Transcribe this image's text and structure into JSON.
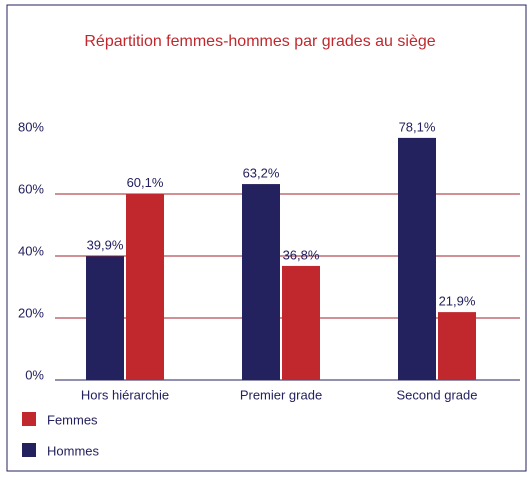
{
  "chart_data": {
    "type": "bar",
    "title": "Répartition femmes-hommes par grades au siège",
    "categories": [
      "Hors hiérarchie",
      "Premier grade",
      "Second grade"
    ],
    "series": [
      {
        "name": "Hommes",
        "color": "#23215e",
        "values": [
          39.9,
          63.2,
          78.1
        ],
        "value_labels": [
          "39,9%",
          "63,2%",
          "78,1%"
        ]
      },
      {
        "name": "Femmes",
        "color": "#c0282e",
        "values": [
          60.1,
          36.8,
          21.9
        ],
        "value_labels": [
          "60,1%",
          "36,8%",
          "21,9%"
        ]
      }
    ],
    "ylim": [
      0,
      80
    ],
    "yticks": [
      {
        "value": 0,
        "label": "0%"
      },
      {
        "value": 20,
        "label": "20%"
      },
      {
        "value": 40,
        "label": "40%"
      },
      {
        "value": 60,
        "label": "60%"
      },
      {
        "value": 80,
        "label": "80%"
      }
    ],
    "grid": true,
    "grid_color": "#a3202a",
    "legend": "bottom-left"
  }
}
